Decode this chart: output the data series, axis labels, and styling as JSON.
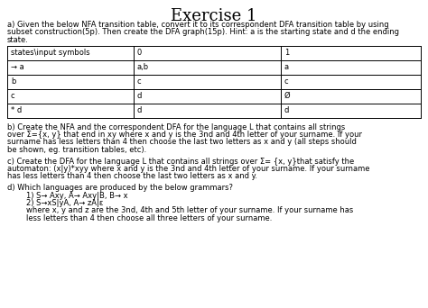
{
  "title": "Exercise 1",
  "part_a_line1": "a) Given the below NFA transition table, convert it to its correspondent DFA transition table by using",
  "part_a_line2": "subset construction(5p). Then create the DFA graph(15p). Hint: a is the starting state and d the ending",
  "part_a_line3": "state.",
  "table_headers": [
    "states\\input symbols",
    "0",
    "1"
  ],
  "table_rows": [
    [
      "→ a",
      "a,b",
      "a"
    ],
    [
      "b",
      "c",
      "c"
    ],
    [
      "c",
      "d",
      "Ø"
    ],
    [
      "* d",
      "d",
      "d"
    ]
  ],
  "part_b_line1": "b) Create the NFA and the correspondent DFA for the language L that contains all strings",
  "part_b_line2": "over Σ={x, y} that end in xy where x and y is the 3nd and 4th letter of your surname. If your",
  "part_b_line3": "surname has less letters than 4 then choose the last two letters as x and y (all steps should",
  "part_b_line4": "be shown, eg. transition tables, etc).",
  "part_c_line1": "c) Create the DFA for the language L that contains all strings over Σ= {x, y}that satisfy the",
  "part_c_line2": "automaton: (x|y)*xyy where x and y is the 3nd and 4th letter of your surname. If your surname",
  "part_c_line3": "has less letters than 4 then choose the last two letters as x and y.",
  "part_d_line1": "d) Which languages are produced by the below grammars?",
  "part_d_line2": "        1) S→ Axy, A→ Axy|B, B→ x",
  "part_d_line3": "        2) S→xS|yA, A→ zA|ε",
  "part_d_line4": "        where x, y and z are the 3nd, 4th and 5th letter of your surname. If your surname has",
  "part_d_line5": "        less letters than 4 then choose all three letters of your surname.",
  "bg_color": "#ffffff",
  "text_color": "#000000",
  "table_border": "#000000"
}
